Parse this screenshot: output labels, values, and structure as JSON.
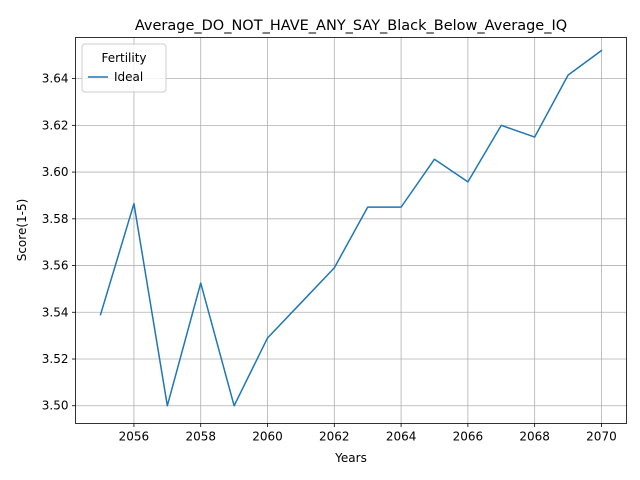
{
  "chart_data": {
    "type": "line",
    "title": "Average_DO_NOT_HAVE_ANY_SAY_Black_Below_Average_IQ",
    "xlabel": "Years",
    "ylabel": "Score(1-5)",
    "xlim": [
      2054.25,
      2070.75
    ],
    "ylim": [
      3.4924,
      3.6576
    ],
    "xticks": [
      2056,
      2058,
      2060,
      2062,
      2064,
      2066,
      2068,
      2070
    ],
    "yticks": [
      3.5,
      3.52,
      3.54,
      3.56,
      3.58,
      3.6,
      3.62,
      3.64
    ],
    "grid": true,
    "legend": {
      "title": "Fertility",
      "placement": "top-left"
    },
    "series": [
      {
        "name": "Ideal",
        "color": "#1f77b4",
        "x": [
          2055,
          2056,
          2057,
          2058,
          2059,
          2060,
          2061,
          2062,
          2063,
          2064,
          2065,
          2066,
          2067,
          2068,
          2069,
          2070
        ],
        "y": [
          3.539,
          3.5865,
          3.5,
          3.5525,
          3.5,
          3.529,
          3.544,
          3.559,
          3.585,
          3.585,
          3.6055,
          3.5958,
          3.62,
          3.615,
          3.6415,
          3.652
        ]
      }
    ]
  }
}
